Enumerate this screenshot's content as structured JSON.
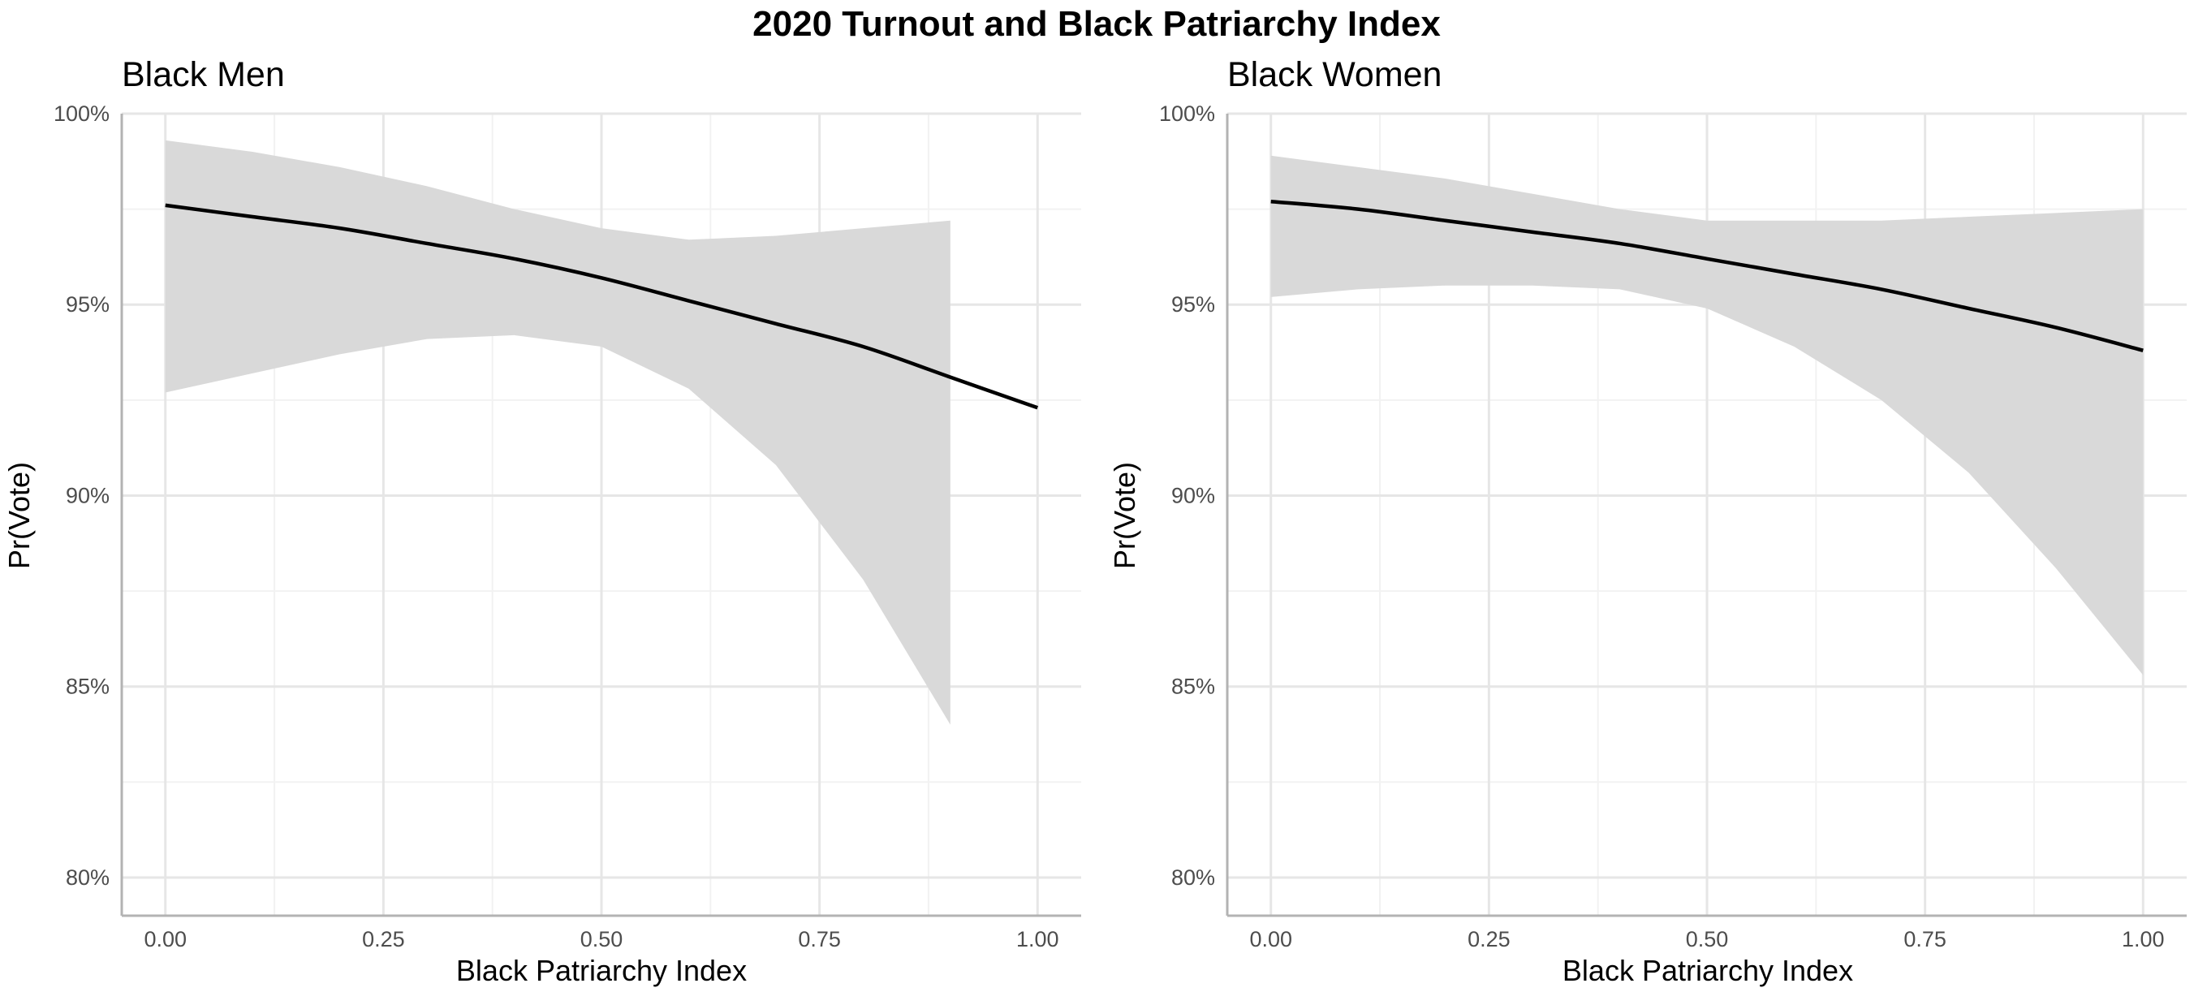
{
  "title": "2020 Turnout and Black Patriarchy Index",
  "colors": {
    "ribbon": "#d9d9d9",
    "line": "#000000",
    "grid_major": "#e6e6e6",
    "grid_minor": "#f2f2f2",
    "axis": "#b3b3b3"
  },
  "chart_data": [
    {
      "type": "line",
      "title": "Black Men",
      "xlabel": "Black Patriarchy Index",
      "ylabel": "Pr(Vote)",
      "xlim": [
        -0.05,
        1.05
      ],
      "ylim": [
        0.79,
        1.0
      ],
      "x_ticks": [
        0,
        0.25,
        0.5,
        0.75,
        1
      ],
      "x_tick_labels": [
        "0.00",
        "0.25",
        "0.50",
        "0.75",
        "1.00"
      ],
      "y_ticks": [
        0.8,
        0.85,
        0.9,
        0.95,
        1.0
      ],
      "y_tick_labels": [
        "80%",
        "85%",
        "90%",
        "95%",
        "100%"
      ],
      "grid": true,
      "line": {
        "x": [
          0,
          0.1,
          0.2,
          0.3,
          0.4,
          0.5,
          0.6,
          0.7,
          0.8,
          0.9,
          1.0
        ],
        "y": [
          0.976,
          0.973,
          0.97,
          0.966,
          0.962,
          0.957,
          0.951,
          0.945,
          0.939,
          0.931,
          0.923
        ]
      },
      "ribbon": {
        "x": [
          0,
          0.1,
          0.2,
          0.3,
          0.4,
          0.5,
          0.6,
          0.7,
          0.8,
          0.9
        ],
        "lower": [
          0.927,
          0.932,
          0.937,
          0.941,
          0.942,
          0.939,
          0.928,
          0.908,
          0.878,
          0.84
        ],
        "upper": [
          0.993,
          0.99,
          0.986,
          0.981,
          0.975,
          0.97,
          0.967,
          0.968,
          0.97,
          0.972
        ]
      }
    },
    {
      "type": "line",
      "title": "Black Women",
      "xlabel": "Black Patriarchy Index",
      "ylabel": "Pr(Vote)",
      "xlim": [
        -0.05,
        1.05
      ],
      "ylim": [
        0.79,
        1.0
      ],
      "x_ticks": [
        0,
        0.25,
        0.5,
        0.75,
        1
      ],
      "x_tick_labels": [
        "0.00",
        "0.25",
        "0.50",
        "0.75",
        "1.00"
      ],
      "y_ticks": [
        0.8,
        0.85,
        0.9,
        0.95,
        1.0
      ],
      "y_tick_labels": [
        "80%",
        "85%",
        "90%",
        "95%",
        "100%"
      ],
      "grid": true,
      "line": {
        "x": [
          0,
          0.1,
          0.2,
          0.3,
          0.4,
          0.5,
          0.6,
          0.7,
          0.8,
          0.9,
          1.0
        ],
        "y": [
          0.977,
          0.975,
          0.972,
          0.969,
          0.966,
          0.962,
          0.958,
          0.954,
          0.949,
          0.944,
          0.938
        ]
      },
      "ribbon": {
        "x": [
          0,
          0.1,
          0.2,
          0.3,
          0.4,
          0.5,
          0.6,
          0.7,
          0.8,
          0.9,
          1.0
        ],
        "lower": [
          0.952,
          0.954,
          0.955,
          0.955,
          0.954,
          0.949,
          0.939,
          0.925,
          0.906,
          0.881,
          0.853
        ],
        "upper": [
          0.989,
          0.986,
          0.983,
          0.979,
          0.975,
          0.972,
          0.972,
          0.972,
          0.973,
          0.974,
          0.975
        ]
      }
    }
  ]
}
